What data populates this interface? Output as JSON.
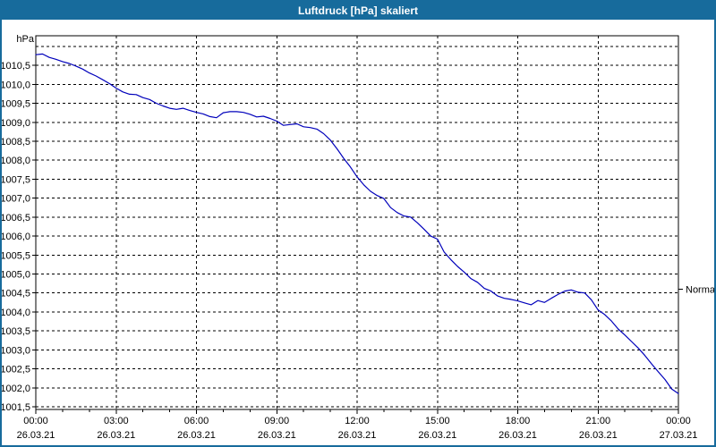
{
  "window": {
    "title": "Luftdruck [hPa] skaliert"
  },
  "colors": {
    "titlebar_bg": "#176b9c",
    "window_border": "#176b9c",
    "plot_bg": "#ffffff",
    "grid": "#000000",
    "text": "#000000",
    "curve": "#0000bb"
  },
  "y_axis": {
    "unit_label": "hPa",
    "range": [
      1001.43,
      1011.28
    ],
    "grid_min": 1001.5,
    "grid_max": 1011.0,
    "grid_step": 0.5,
    "ticks": [
      {
        "label": "1010,5",
        "value": 1010.5
      },
      {
        "label": "1010,0",
        "value": 1010.0
      },
      {
        "label": "1009,5",
        "value": 1009.5
      },
      {
        "label": "1009,0",
        "value": 1009.0
      },
      {
        "label": "1008,5",
        "value": 1008.5
      },
      {
        "label": "1008,0",
        "value": 1008.0
      },
      {
        "label": "1007,5",
        "value": 1007.5
      },
      {
        "label": "1007,0",
        "value": 1007.0
      },
      {
        "label": "1006,5",
        "value": 1006.5
      },
      {
        "label": "1006,0",
        "value": 1006.0
      },
      {
        "label": "1005,5",
        "value": 1005.5
      },
      {
        "label": "1005,0",
        "value": 1005.0
      },
      {
        "label": "1004,5",
        "value": 1004.5
      },
      {
        "label": "1004,0",
        "value": 1004.0
      },
      {
        "label": "1003,5",
        "value": 1003.5
      },
      {
        "label": "1003,0",
        "value": 1003.0
      },
      {
        "label": "1002,5",
        "value": 1002.5
      },
      {
        "label": "1002,0",
        "value": 1002.0
      },
      {
        "label": "1001,5",
        "value": 1001.5
      }
    ]
  },
  "x_axis": {
    "range_hours": [
      0,
      24
    ],
    "minor_tick_every_hours": 1,
    "major_tick_every_hours": 3,
    "ticks": [
      {
        "hour": 0,
        "time": "00:00",
        "date": "26.03.21"
      },
      {
        "hour": 3,
        "time": "03:00",
        "date": "26.03.21"
      },
      {
        "hour": 6,
        "time": "06:00",
        "date": "26.03.21"
      },
      {
        "hour": 9,
        "time": "09:00",
        "date": "26.03.21"
      },
      {
        "hour": 12,
        "time": "12:00",
        "date": "26.03.21"
      },
      {
        "hour": 15,
        "time": "15:00",
        "date": "26.03.21"
      },
      {
        "hour": 18,
        "time": "18:00",
        "date": "26.03.21"
      },
      {
        "hour": 21,
        "time": "21:00",
        "date": "26.03.21"
      },
      {
        "hour": 24,
        "time": "00:00",
        "date": "27.03.21"
      }
    ]
  },
  "normal_marker": {
    "label": "Normal",
    "value": 1004.6
  },
  "chart_data": {
    "type": "line",
    "title": "Luftdruck [hPa] skaliert",
    "ylabel": "hPa",
    "ylim": [
      1001.43,
      1011.28
    ],
    "xlim_hours": [
      0,
      24
    ],
    "x_start": "26.03.21 00:00",
    "x_end": "27.03.21 00:00",
    "interval_minutes": 15,
    "grid": "horizontal dashed every 0.5 hPa, vertical dashed every 3 h",
    "legend": "none",
    "annotations": [
      {
        "label": "Normal",
        "value": 1004.6,
        "position": "right-axis"
      }
    ],
    "series": [
      {
        "name": "Luftdruck",
        "unit": "hPa",
        "values": [
          1010.78,
          1010.8,
          1010.71,
          1010.66,
          1010.6,
          1010.55,
          1010.48,
          1010.4,
          1010.3,
          1010.22,
          1010.12,
          1010.02,
          1009.9,
          1009.8,
          1009.74,
          1009.73,
          1009.65,
          1009.6,
          1009.5,
          1009.43,
          1009.37,
          1009.34,
          1009.37,
          1009.31,
          1009.26,
          1009.22,
          1009.15,
          1009.12,
          1009.25,
          1009.28,
          1009.28,
          1009.26,
          1009.21,
          1009.14,
          1009.16,
          1009.1,
          1009.03,
          1008.92,
          1008.94,
          1008.96,
          1008.88,
          1008.86,
          1008.82,
          1008.7,
          1008.53,
          1008.3,
          1008.05,
          1007.82,
          1007.56,
          1007.35,
          1007.18,
          1007.07,
          1006.99,
          1006.75,
          1006.62,
          1006.53,
          1006.5,
          1006.35,
          1006.18,
          1006.0,
          1005.92,
          1005.58,
          1005.38,
          1005.2,
          1005.05,
          1004.88,
          1004.78,
          1004.62,
          1004.55,
          1004.42,
          1004.36,
          1004.33,
          1004.29,
          1004.24,
          1004.19,
          1004.3,
          1004.25,
          1004.36,
          1004.46,
          1004.55,
          1004.58,
          1004.52,
          1004.5,
          1004.32,
          1004.05,
          1003.93,
          1003.76,
          1003.55,
          1003.39,
          1003.22,
          1003.05,
          1002.85,
          1002.63,
          1002.42,
          1002.22,
          1001.97,
          1001.85
        ]
      }
    ]
  }
}
